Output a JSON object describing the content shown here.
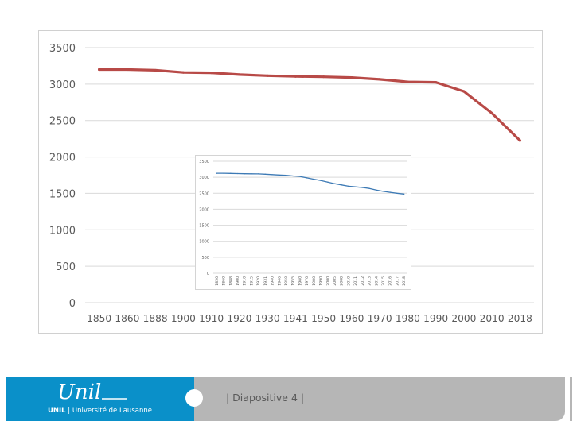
{
  "chart_data": [
    {
      "type": "line",
      "categories": [
        "1850",
        "1860",
        "1888",
        "1900",
        "1910",
        "1920",
        "1930",
        "1941",
        "1950",
        "1960",
        "1970",
        "1980",
        "1990",
        "2000",
        "2010",
        "2018"
      ],
      "series": [
        {
          "values": [
            3200,
            3200,
            3190,
            3160,
            3155,
            3130,
            3115,
            3105,
            3100,
            3090,
            3065,
            3030,
            3025,
            2900,
            2600,
            2225
          ]
        }
      ],
      "ylim": [
        0,
        3500
      ],
      "yticks": [
        "0",
        "500",
        "1000",
        "1500",
        "2000",
        "2500",
        "3000",
        "3500"
      ],
      "grid": true,
      "color": "#b84a47",
      "title": "",
      "xlabel": "",
      "ylabel": ""
    },
    {
      "type": "line",
      "categories": [
        "1850",
        "1860",
        "1888",
        "1900",
        "1910",
        "1915",
        "1920",
        "1931",
        "1940",
        "1946",
        "1950",
        "1955",
        "1960",
        "1970",
        "1980",
        "1990",
        "2000",
        "2005",
        "2008",
        "2010",
        "2011",
        "2012",
        "2013",
        "2014",
        "2015",
        "2016",
        "2017",
        "2018"
      ],
      "series": [
        {
          "values": [
            3125,
            3125,
            3120,
            3115,
            3110,
            3108,
            3105,
            3095,
            3082,
            3070,
            3060,
            3040,
            3025,
            2980,
            2940,
            2900,
            2850,
            2800,
            2760,
            2720,
            2700,
            2680,
            2650,
            2600,
            2560,
            2530,
            2500,
            2475
          ]
        }
      ],
      "ylim": [
        0,
        3500
      ],
      "yticks": [
        "0",
        "500",
        "1000",
        "1500",
        "2000",
        "2500",
        "3000",
        "3500"
      ],
      "grid": true,
      "color": "#3d7ab5",
      "title": "",
      "xlabel": "",
      "ylabel": ""
    }
  ],
  "footer": {
    "logo_text": "Unil",
    "logo_tagline_unil": "UNIL",
    "logo_tagline_rest": " | Université de Lausanne",
    "slide_label": "| Diapositive 4 |"
  },
  "colors": {
    "footer_blue": "#0a90c9",
    "footer_gray": "#b6b6b6"
  }
}
